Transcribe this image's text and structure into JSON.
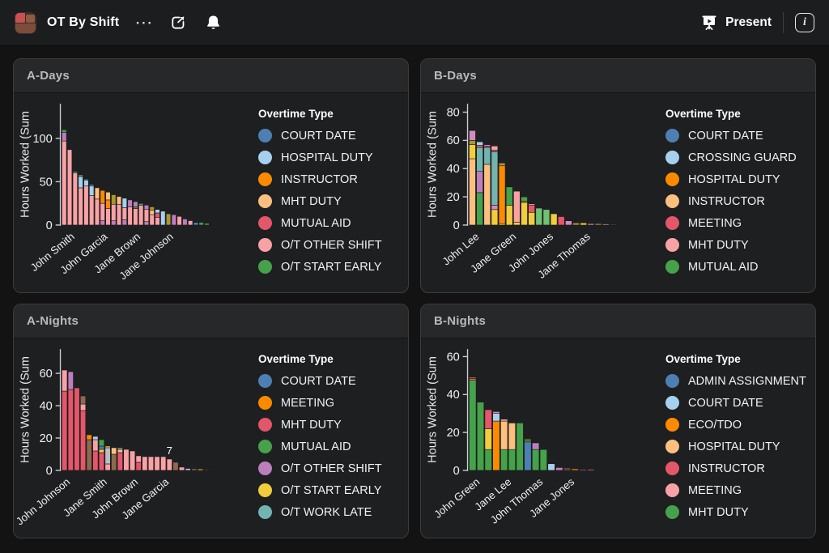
{
  "header": {
    "title": "OT By Shift",
    "overflow_glyph": "⋯",
    "present_label": "Present",
    "info_glyph": "i"
  },
  "colors": {
    "blue": "#4d7fb3",
    "lightblue": "#a6d1ee",
    "orange": "#fb8a00",
    "tan": "#fdbf7e",
    "red": "#e4566a",
    "pink": "#f9a2a6",
    "green": "#45a24a",
    "ltgreen": "#6fc374",
    "orchid": "#bd7ebe",
    "yellow": "#f1cc3d",
    "teal": "#72b5b0",
    "olive": "#a79730",
    "brown": "#8c6a4f",
    "gray": "#b9bec4",
    "plum": "#d28ac2"
  },
  "chart_data": [
    {
      "type": "bar",
      "stacked": true,
      "title": "A-Days",
      "ylabel": "Hours Worked (Sum",
      "yticks": [
        0,
        50,
        100
      ],
      "ymax": 140,
      "legend_title": "Overtime Type",
      "legend": [
        {
          "label": "COURT DATE",
          "color": "blue"
        },
        {
          "label": "HOSPITAL DUTY",
          "color": "lightblue"
        },
        {
          "label": "INSTRUCTOR",
          "color": "orange"
        },
        {
          "label": "MHT DUTY",
          "color": "tan"
        },
        {
          "label": "MUTUAL AID",
          "color": "red"
        },
        {
          "label": "O/T OTHER SHIFT",
          "color": "pink"
        },
        {
          "label": "O/T START EARLY",
          "color": "green"
        }
      ],
      "xtick_labels": [
        {
          "bar": 2,
          "label": "John Smith"
        },
        {
          "bar": 8,
          "label": "John Garcia"
        },
        {
          "bar": 14,
          "label": "Jane Brown"
        },
        {
          "bar": 20,
          "label": "Jane Johnson"
        }
      ],
      "annotations": [],
      "bars": [
        [
          [
            "pink",
            97
          ],
          [
            "orchid",
            10
          ],
          [
            "green",
            3
          ]
        ],
        [
          [
            "pink",
            87
          ]
        ],
        [
          [
            "pink",
            60
          ],
          [
            "green",
            2
          ]
        ],
        [
          [
            "pink",
            43
          ],
          [
            "lightblue",
            13
          ],
          [
            "green",
            2
          ]
        ],
        [
          [
            "pink",
            45
          ],
          [
            "lightblue",
            7
          ],
          [
            "green",
            1
          ]
        ],
        [
          [
            "pink",
            34
          ],
          [
            "lightblue",
            11
          ],
          [
            "blue",
            2
          ]
        ],
        [
          [
            "pink",
            30
          ],
          [
            "tan",
            13
          ]
        ],
        [
          [
            "orchid",
            5
          ],
          [
            "pink",
            20
          ],
          [
            "orange",
            15
          ]
        ],
        [
          [
            "pink",
            19
          ],
          [
            "orange",
            10
          ],
          [
            "tan",
            9
          ]
        ],
        [
          [
            "orchid",
            5
          ],
          [
            "pink",
            19
          ],
          [
            "olive",
            11
          ]
        ],
        [
          [
            "pink",
            24
          ],
          [
            "tan",
            9
          ]
        ],
        [
          [
            "orchid",
            6
          ],
          [
            "pink",
            14
          ],
          [
            "lightblue",
            11
          ]
        ],
        [
          [
            "pink",
            21
          ],
          [
            "orchid",
            8
          ]
        ],
        [
          [
            "pink",
            19
          ],
          [
            "green",
            2
          ],
          [
            "orchid",
            6
          ]
        ],
        [
          [
            "pink",
            23
          ],
          [
            "green",
            2
          ]
        ],
        [
          [
            "orchid",
            4
          ],
          [
            "pink",
            14
          ],
          [
            "orchid",
            5
          ]
        ],
        [
          [
            "pink",
            12
          ],
          [
            "tan",
            5
          ],
          [
            "olive",
            4
          ]
        ],
        [
          [
            "pink",
            9
          ],
          [
            "red",
            5
          ],
          [
            "lightblue",
            4
          ]
        ],
        [
          [
            "lightblue",
            16
          ]
        ],
        [
          [
            "olive",
            13
          ]
        ],
        [
          [
            "orchid",
            12
          ]
        ],
        [
          [
            "pink",
            10
          ]
        ],
        [
          [
            "orchid",
            7
          ]
        ],
        [
          [
            "pink",
            5
          ],
          [
            "blue",
            1
          ]
        ],
        [
          [
            "blue",
            3
          ]
        ],
        [
          [
            "green",
            3
          ]
        ],
        [
          [
            "green",
            2
          ]
        ]
      ]
    },
    {
      "type": "bar",
      "stacked": true,
      "title": "B-Days",
      "ylabel": "Hours Worked (Sum",
      "yticks": [
        0,
        20,
        40,
        60,
        80
      ],
      "ymax": 86,
      "legend_title": "Overtime Type",
      "legend": [
        {
          "label": "COURT DATE",
          "color": "blue"
        },
        {
          "label": "CROSSING GUARD",
          "color": "lightblue"
        },
        {
          "label": "HOSPITAL DUTY",
          "color": "orange"
        },
        {
          "label": "INSTRUCTOR",
          "color": "tan"
        },
        {
          "label": "MEETING",
          "color": "red"
        },
        {
          "label": "MHT DUTY",
          "color": "pink"
        },
        {
          "label": "MUTUAL AID",
          "color": "green"
        }
      ],
      "xtick_labels": [
        {
          "bar": 1,
          "label": "John Lee"
        },
        {
          "bar": 6,
          "label": "Jane Green"
        },
        {
          "bar": 11,
          "label": "John Jones"
        },
        {
          "bar": 16,
          "label": "Jane Thomas"
        }
      ],
      "annotations": [],
      "bars": [
        [
          [
            "tan",
            47
          ],
          [
            "yellow",
            10
          ],
          [
            "olive",
            3
          ],
          [
            "plum",
            7
          ]
        ],
        [
          [
            "green",
            23
          ],
          [
            "orchid",
            15
          ],
          [
            "teal",
            17
          ],
          [
            "red",
            1.5
          ],
          [
            "lightblue",
            2.5
          ]
        ],
        [
          [
            "tan",
            43
          ],
          [
            "teal",
            12
          ],
          [
            "red",
            1
          ],
          [
            "plum",
            1
          ]
        ],
        [
          [
            "yellow",
            11
          ],
          [
            "plum",
            3
          ],
          [
            "teal",
            38
          ],
          [
            "red",
            1
          ],
          [
            "pink",
            3
          ]
        ],
        [
          [
            "yellow",
            1
          ],
          [
            "orange",
            41
          ],
          [
            "olive",
            2
          ]
        ],
        [
          [
            "yellow",
            14
          ],
          [
            "green",
            13
          ]
        ],
        [
          [
            "yellow",
            2
          ],
          [
            "pink",
            22
          ]
        ],
        [
          [
            "yellow",
            16
          ],
          [
            "olive",
            1
          ],
          [
            "green",
            3
          ]
        ],
        [
          [
            "yellow",
            9
          ],
          [
            "red",
            5
          ],
          [
            "pink",
            1
          ]
        ],
        [
          [
            "ltgreen",
            12
          ]
        ],
        [
          [
            "ltgreen",
            11
          ]
        ],
        [
          [
            "yellow",
            8
          ]
        ],
        [
          [
            "red",
            6
          ]
        ],
        [
          [
            "plum",
            3
          ]
        ],
        [
          [
            "olive",
            1.5
          ]
        ],
        [
          [
            "yellow",
            1.5
          ]
        ],
        [
          [
            "plum",
            1
          ]
        ],
        [
          [
            "olive",
            1
          ]
        ],
        [
          [
            "plum",
            0.8
          ]
        ],
        [
          [
            "olive",
            0.5
          ]
        ]
      ]
    },
    {
      "type": "bar",
      "stacked": true,
      "title": "A-Nights",
      "ylabel": "Hours Worked (Sum",
      "yticks": [
        0,
        20,
        40,
        60
      ],
      "ymax": 75,
      "legend_title": "Overtime Type",
      "legend": [
        {
          "label": "COURT DATE",
          "color": "blue"
        },
        {
          "label": "MEETING",
          "color": "orange"
        },
        {
          "label": "MHT DUTY",
          "color": "red"
        },
        {
          "label": "MUTUAL AID",
          "color": "green"
        },
        {
          "label": "O/T OTHER SHIFT",
          "color": "orchid"
        },
        {
          "label": "O/T START EARLY",
          "color": "yellow"
        },
        {
          "label": "O/T WORK LATE",
          "color": "teal"
        }
      ],
      "xtick_labels": [
        {
          "bar": 1,
          "label": "John Johnson"
        },
        {
          "bar": 7,
          "label": "Jane Smith"
        },
        {
          "bar": 12,
          "label": "John Brown"
        },
        {
          "bar": 17,
          "label": "Jane Garcia"
        }
      ],
      "annotations": [
        {
          "bar": 17,
          "text": "7"
        }
      ],
      "bars": [
        [
          [
            "red",
            49
          ],
          [
            "pink",
            13
          ]
        ],
        [
          [
            "red",
            50
          ],
          [
            "orchid",
            11
          ]
        ],
        [
          [
            "red",
            51
          ]
        ],
        [
          [
            "red",
            37
          ],
          [
            "pink",
            4
          ],
          [
            "brown",
            5
          ]
        ],
        [
          [
            "brown",
            19
          ],
          [
            "orange",
            3
          ]
        ],
        [
          [
            "red",
            12
          ],
          [
            "pink",
            7
          ],
          [
            "lightblue",
            2
          ]
        ],
        [
          [
            "red",
            11
          ],
          [
            "yellow",
            2
          ],
          [
            "blue",
            2
          ],
          [
            "green",
            4
          ]
        ],
        [
          [
            "pink",
            4
          ],
          [
            "gray",
            10
          ],
          [
            "yellow",
            1
          ]
        ],
        [
          [
            "brown",
            10
          ],
          [
            "tan",
            4
          ]
        ],
        [
          [
            "red",
            11
          ],
          [
            "tan",
            2
          ],
          [
            "teal",
            1
          ]
        ],
        [
          [
            "pink",
            13
          ]
        ],
        [
          [
            "pink",
            12
          ]
        ],
        [
          [
            "red",
            5
          ],
          [
            "pink",
            4
          ]
        ],
        [
          [
            "pink",
            8.5
          ]
        ],
        [
          [
            "pink",
            8.5
          ]
        ],
        [
          [
            "pink",
            8.5
          ]
        ],
        [
          [
            "pink",
            8.5
          ]
        ],
        [
          [
            "pink",
            7
          ]
        ],
        [
          [
            "brown",
            5
          ]
        ],
        [
          [
            "pink",
            2
          ]
        ],
        [
          [
            "gray",
            1.2
          ]
        ],
        [
          [
            "brown",
            1
          ]
        ],
        [
          [
            "yellow",
            0.8
          ]
        ],
        [
          [
            "brown",
            0.5
          ]
        ]
      ]
    },
    {
      "type": "bar",
      "stacked": true,
      "title": "B-Nights",
      "ylabel": "Hours Worked (Sum",
      "yticks": [
        0,
        20,
        40,
        60
      ],
      "ymax": 64,
      "legend_title": "Overtime Type",
      "legend": [
        {
          "label": "ADMIN ASSIGNMENT",
          "color": "blue"
        },
        {
          "label": "COURT DATE",
          "color": "lightblue"
        },
        {
          "label": "ECO/TDO",
          "color": "orange"
        },
        {
          "label": "HOSPITAL DUTY",
          "color": "tan"
        },
        {
          "label": "INSTRUCTOR",
          "color": "red"
        },
        {
          "label": "MEETING",
          "color": "pink"
        },
        {
          "label": "MHT DUTY",
          "color": "green"
        }
      ],
      "xtick_labels": [
        {
          "bar": 1,
          "label": "John Green"
        },
        {
          "bar": 5,
          "label": "Jane Lee"
        },
        {
          "bar": 9,
          "label": "John Thomas"
        },
        {
          "bar": 13,
          "label": "Jane Jones"
        }
      ],
      "annotations": [],
      "bars": [
        [
          [
            "green",
            47.5
          ],
          [
            "red",
            1
          ],
          [
            "yellow",
            0.5
          ]
        ],
        [
          [
            "green",
            36
          ]
        ],
        [
          [
            "green",
            11
          ],
          [
            "yellow",
            11
          ],
          [
            "red",
            10
          ]
        ],
        [
          [
            "orange",
            26
          ],
          [
            "lightblue",
            4
          ],
          [
            "plum",
            1
          ]
        ],
        [
          [
            "green",
            11
          ],
          [
            "tan",
            15
          ],
          [
            "pink",
            1
          ]
        ],
        [
          [
            "green",
            11
          ],
          [
            "tan",
            14
          ]
        ],
        [
          [
            "green",
            25
          ]
        ],
        [
          [
            "blue",
            15
          ],
          [
            "green",
            1
          ],
          [
            "yellow",
            0.5
          ]
        ],
        [
          [
            "green",
            11
          ],
          [
            "orchid",
            3.5
          ]
        ],
        [
          [
            "green",
            11
          ]
        ],
        [
          [
            "lightblue",
            3.5
          ]
        ],
        [
          [
            "orchid",
            1.5
          ]
        ],
        [
          [
            "green",
            0.6
          ],
          [
            "red",
            0.6
          ]
        ],
        [
          [
            "orange",
            0.8
          ]
        ],
        [
          [
            "orchid",
            0.5
          ]
        ],
        [
          [
            "pink",
            0.5
          ]
        ]
      ]
    }
  ]
}
